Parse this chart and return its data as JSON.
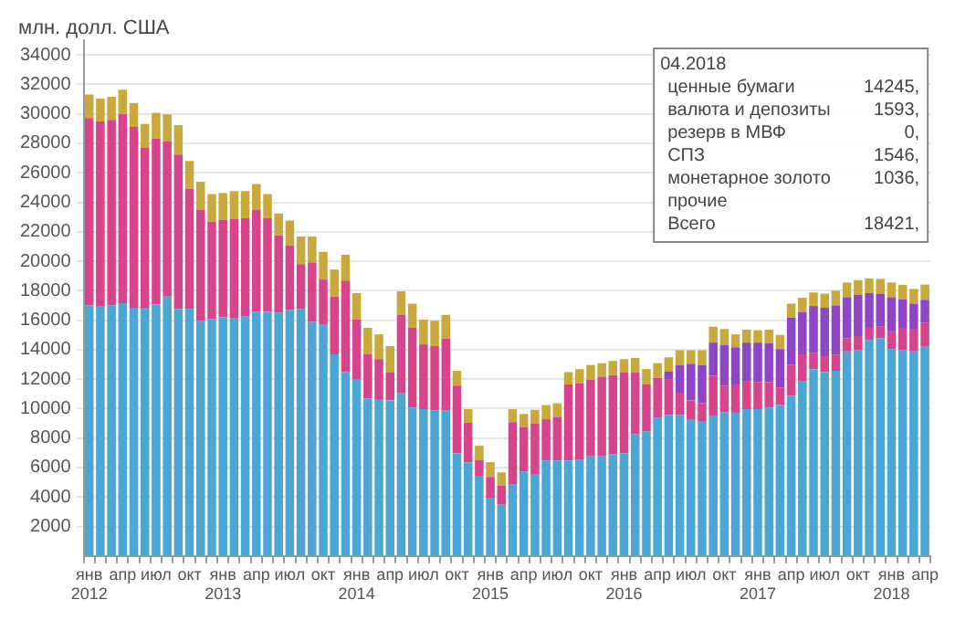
{
  "chart_data": {
    "type": "bar",
    "stacked": true,
    "ylabel": "млн. долл. США",
    "categories": [
      "янв\n2012",
      null,
      null,
      "апр",
      null,
      null,
      "июл",
      null,
      null,
      "окт",
      null,
      null,
      "янв\n2013",
      null,
      null,
      "апр",
      null,
      null,
      "июл",
      null,
      null,
      "окт",
      null,
      null,
      "янв\n2014",
      null,
      null,
      "апр",
      null,
      null,
      "июл",
      null,
      null,
      "окт",
      null,
      null,
      "янв\n2015",
      null,
      null,
      "апр",
      null,
      null,
      "июл",
      null,
      null,
      "окт",
      null,
      null,
      "янв\n2016",
      null,
      null,
      "апр",
      null,
      null,
      "июл",
      null,
      null,
      "окт",
      null,
      null,
      "янв\n2017",
      null,
      null,
      "апр",
      null,
      null,
      "июл",
      null,
      null,
      "окт",
      null,
      null,
      "янв\n2018",
      null,
      null,
      "апр"
    ],
    "series": [
      {
        "color": "#4ba6d6",
        "values": [
          17000,
          16920,
          17000,
          17160,
          16840,
          16840,
          17080,
          17600,
          16760,
          16760,
          15960,
          16080,
          16200,
          16120,
          16240,
          16560,
          16560,
          16520,
          16680,
          16760,
          15880,
          15680,
          13680,
          12480,
          11960,
          10680,
          10640,
          10560,
          11040,
          10080,
          9960,
          9880,
          9880,
          6960,
          6360,
          5440,
          3960,
          3480,
          4840,
          5720,
          5560,
          6480,
          6480,
          6480,
          6520,
          6760,
          6760,
          6920,
          6960,
          8280,
          8440,
          9360,
          9560,
          9560,
          9280,
          9160,
          9480,
          9760,
          9720,
          9960,
          9960,
          10080,
          10240,
          10880,
          11840,
          12680,
          12480,
          12560,
          13880,
          13960,
          14680,
          14760,
          14040,
          13960,
          13880,
          14245
        ]
      },
      {
        "color": "#d6448c",
        "values": [
          12720,
          12560,
          12600,
          12840,
          12280,
          10840,
          11240,
          10560,
          10480,
          8160,
          7520,
          6600,
          6600,
          6760,
          6680,
          6920,
          6360,
          5240,
          4400,
          3040,
          4040,
          3080,
          3920,
          6200,
          4080,
          3000,
          2720,
          1920,
          5320,
          5400,
          4400,
          4360,
          4880,
          4600,
          2680,
          1080,
          1400,
          1280,
          4240,
          3040,
          3440,
          2800,
          2960,
          5160,
          5200,
          5200,
          5400,
          5360,
          5480,
          4160,
          3200,
          2720,
          2400,
          1520,
          1280,
          1200,
          2760,
          1800,
          1920,
          1920,
          1840,
          1720,
          1200,
          2080,
          1840,
          1080,
          1080,
          1080,
          880,
          960,
          800,
          800,
          1200,
          1520,
          1480,
          1593
        ]
      },
      {
        "color": "#8e46c6",
        "values": [
          null,
          null,
          null,
          null,
          null,
          null,
          null,
          null,
          null,
          null,
          null,
          null,
          null,
          null,
          null,
          null,
          null,
          null,
          null,
          null,
          null,
          null,
          null,
          null,
          null,
          null,
          null,
          null,
          null,
          null,
          null,
          null,
          null,
          null,
          null,
          null,
          null,
          null,
          null,
          null,
          null,
          null,
          null,
          null,
          null,
          null,
          null,
          null,
          null,
          null,
          null,
          null,
          560,
          1880,
          2480,
          2600,
          2240,
          2760,
          2520,
          2600,
          2680,
          2640,
          2600,
          3200,
          2880,
          3200,
          3280,
          3360,
          2800,
          2800,
          2360,
          2240,
          2320,
          1920,
          1760,
          1546
        ]
      },
      {
        "color": "#c9a93c",
        "values": [
          1600,
          1560,
          1560,
          1640,
          1600,
          1640,
          1760,
          1800,
          2000,
          1880,
          1920,
          1880,
          1840,
          1880,
          1840,
          1760,
          1640,
          1480,
          1680,
          1880,
          1760,
          1880,
          1840,
          1760,
          1800,
          1800,
          1680,
          1760,
          1600,
          1640,
          1680,
          1720,
          1600,
          1000,
          920,
          960,
          1000,
          920,
          880,
          880,
          920,
          960,
          920,
          840,
          960,
          1000,
          920,
          960,
          920,
          1000,
          1040,
          1000,
          960,
          1000,
          920,
          1000,
          1080,
          1080,
          880,
          880,
          840,
          920,
          960,
          960,
          960,
          920,
          960,
          1000,
          1000,
          1000,
          1000,
          1000,
          1000,
          1000,
          1000,
          1036
        ]
      }
    ],
    "ylim": [
      0,
      35000
    ],
    "yticks": [
      2000,
      4000,
      6000,
      8000,
      10000,
      12000,
      14000,
      16000,
      18000,
      20000,
      22000,
      24000,
      26000,
      28000,
      30000,
      32000,
      34000
    ],
    "grid": "y",
    "legend": false,
    "annotations": [
      "04.2018",
      "ценные бумаги 14245,",
      "валюта и депозиты 1593,",
      "резерв в МВФ 0,",
      "СПЗ 1546,",
      "монетарное золото 1036,",
      "прочие",
      "Всего 18421,"
    ]
  }
}
